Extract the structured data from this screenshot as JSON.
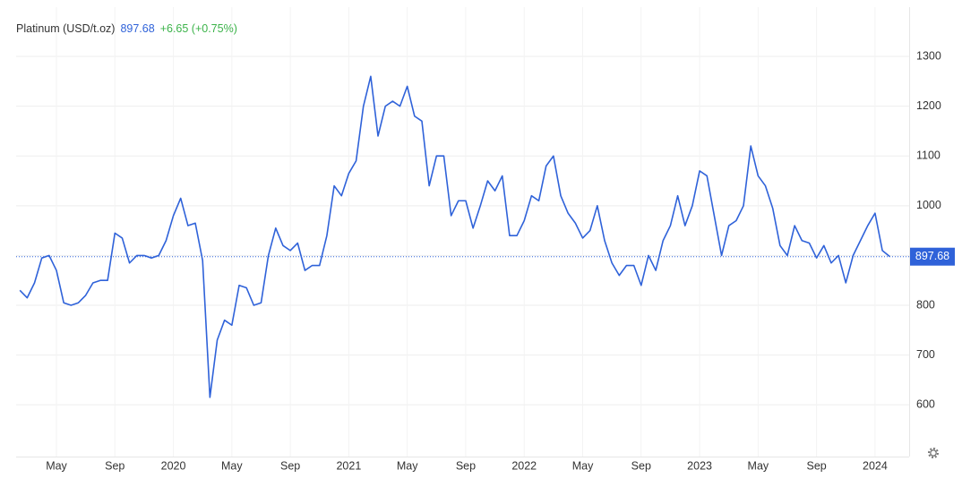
{
  "chart_data": {
    "type": "line",
    "title": "Platinum (USD/t.oz)",
    "last_value": 897.68,
    "change_label": "+6.65 (+0.75%)",
    "categories": [
      null,
      null,
      null,
      null,
      null,
      "May",
      null,
      null,
      null,
      null,
      null,
      null,
      null,
      "Sep",
      null,
      null,
      null,
      null,
      null,
      null,
      null,
      "2020",
      null,
      null,
      null,
      null,
      null,
      null,
      null,
      "May",
      null,
      null,
      null,
      null,
      null,
      null,
      null,
      "Sep",
      null,
      null,
      null,
      null,
      null,
      null,
      null,
      "2021",
      null,
      null,
      null,
      null,
      null,
      null,
      null,
      "May",
      null,
      null,
      null,
      null,
      null,
      null,
      null,
      "Sep",
      null,
      null,
      null,
      null,
      null,
      null,
      null,
      "2022",
      null,
      null,
      null,
      null,
      null,
      null,
      null,
      "May",
      null,
      null,
      null,
      null,
      null,
      null,
      null,
      "Sep",
      null,
      null,
      null,
      null,
      null,
      null,
      null,
      "2023",
      null,
      null,
      null,
      null,
      null,
      null,
      null,
      "May",
      null,
      null,
      null,
      null,
      null,
      null,
      null,
      "Sep",
      null,
      null,
      null,
      null,
      null,
      null,
      null,
      "2024",
      null,
      null
    ],
    "series": [
      {
        "name": "Platinum",
        "color": "#2f62d9",
        "values": [
          830,
          815,
          845,
          895,
          900,
          870,
          805,
          800,
          805,
          820,
          845,
          850,
          850,
          945,
          935,
          885,
          900,
          900,
          895,
          900,
          930,
          980,
          1015,
          960,
          965,
          890,
          615,
          730,
          770,
          760,
          840,
          835,
          800,
          805,
          900,
          955,
          920,
          910,
          925,
          870,
          880,
          880,
          940,
          1040,
          1020,
          1065,
          1090,
          1200,
          1260,
          1140,
          1200,
          1210,
          1200,
          1240,
          1180,
          1170,
          1040,
          1100,
          1100,
          980,
          1010,
          1010,
          955,
          1000,
          1050,
          1030,
          1060,
          940,
          940,
          970,
          1020,
          1010,
          1080,
          1100,
          1020,
          985,
          965,
          935,
          950,
          1000,
          930,
          885,
          860,
          880,
          880,
          840,
          900,
          870,
          930,
          960,
          1020,
          960,
          1000,
          1070,
          1060,
          980,
          900,
          960,
          970,
          1000,
          1120,
          1060,
          1040,
          995,
          920,
          900,
          960,
          930,
          925,
          895,
          920,
          885,
          900,
          845,
          900,
          930,
          960,
          985,
          910,
          898
        ]
      }
    ],
    "ylim": [
      496,
      1399
    ],
    "yticks": [
      600,
      700,
      800,
      900,
      1000,
      1100,
      1200,
      1300
    ],
    "grid": true
  }
}
